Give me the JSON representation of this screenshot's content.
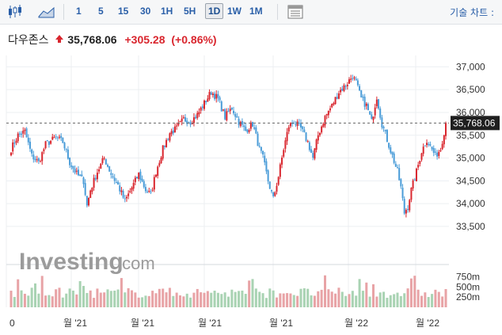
{
  "toolbar": {
    "chart_type_icon": "candlestick-icon",
    "chart_style_icon": "mountain-chart-icon",
    "timeframes": [
      "1",
      "5",
      "15",
      "30",
      "1H",
      "5H",
      "1D",
      "1W",
      "1M"
    ],
    "active_timeframe": "1D",
    "table_icon": "table-view-icon",
    "tools_label": "기술 차트 :"
  },
  "instrument": {
    "name": "다우존스",
    "direction_icon": "up-arrow-icon",
    "price": "35,768.06",
    "change": "+305.28",
    "change_pct": "(+0.86%)",
    "up_color": "#d9262e",
    "down_color": "#4a9cd8"
  },
  "watermark": {
    "brand": "Investing",
    "suffix": ".com"
  },
  "chart_data": {
    "type": "candlestick",
    "title": "",
    "price_axis": {
      "ylim": [
        32700,
        37250
      ],
      "ticks": [
        33500,
        34000,
        34500,
        35000,
        35500,
        36000,
        36500,
        37000
      ],
      "tick_labels": [
        "33,500",
        "34,000",
        "34,500",
        "35,000",
        "35,500",
        "36,000",
        "36,500",
        "37,000"
      ]
    },
    "current_price": 35768.06,
    "current_price_label": "35,768.06",
    "volume_axis": {
      "tick_labels": [
        "750m",
        "500m",
        "250m"
      ],
      "ticks": [
        750,
        500,
        250
      ],
      "ylim": [
        0,
        900
      ]
    },
    "x_labels": [
      "0",
      "월 '21",
      "월 '21",
      "월 '21",
      "월 '21",
      "월 '22",
      "월 '22"
    ],
    "grid": true,
    "anchors": [
      [
        0,
        35200
      ],
      [
        4,
        35500
      ],
      [
        8,
        35580
      ],
      [
        12,
        35050
      ],
      [
        16,
        34900
      ],
      [
        20,
        35300
      ],
      [
        26,
        35450
      ],
      [
        30,
        35350
      ],
      [
        34,
        34900
      ],
      [
        38,
        34650
      ],
      [
        42,
        34500
      ],
      [
        44,
        33950
      ],
      [
        46,
        34300
      ],
      [
        50,
        34700
      ],
      [
        54,
        35000
      ],
      [
        58,
        34650
      ],
      [
        62,
        34400
      ],
      [
        66,
        34050
      ],
      [
        70,
        34350
      ],
      [
        74,
        34650
      ],
      [
        78,
        34300
      ],
      [
        81,
        34200
      ],
      [
        84,
        34700
      ],
      [
        88,
        35200
      ],
      [
        92,
        35550
      ],
      [
        96,
        35650
      ],
      [
        100,
        35850
      ],
      [
        104,
        35800
      ],
      [
        108,
        35950
      ],
      [
        112,
        36200
      ],
      [
        116,
        36450
      ],
      [
        120,
        36300
      ],
      [
        124,
        35900
      ],
      [
        128,
        36100
      ],
      [
        132,
        35800
      ],
      [
        136,
        35600
      ],
      [
        140,
        35750
      ],
      [
        144,
        35200
      ],
      [
        146,
        35000
      ],
      [
        149,
        34500
      ],
      [
        152,
        34100
      ],
      [
        155,
        34600
      ],
      [
        158,
        35200
      ],
      [
        161,
        35700
      ],
      [
        164,
        35800
      ],
      [
        168,
        35650
      ],
      [
        172,
        35350
      ],
      [
        175,
        35000
      ],
      [
        178,
        35500
      ],
      [
        182,
        35900
      ],
      [
        186,
        36150
      ],
      [
        190,
        36450
      ],
      [
        194,
        36600
      ],
      [
        198,
        36800
      ],
      [
        200,
        36650
      ],
      [
        203,
        36300
      ],
      [
        206,
        36150
      ],
      [
        209,
        35800
      ],
      [
        212,
        36350
      ],
      [
        215,
        35750
      ],
      [
        218,
        35400
      ],
      [
        221,
        35050
      ],
      [
        224,
        34700
      ],
      [
        226,
        34350
      ],
      [
        228,
        33800
      ],
      [
        230,
        33950
      ],
      [
        232,
        34300
      ],
      [
        235,
        34700
      ],
      [
        238,
        35150
      ],
      [
        241,
        35400
      ],
      [
        243,
        35250
      ],
      [
        246,
        35050
      ],
      [
        249,
        35200
      ],
      [
        252,
        35768
      ]
    ],
    "candle_count": 253,
    "volume_range": [
      230,
      800
    ]
  }
}
